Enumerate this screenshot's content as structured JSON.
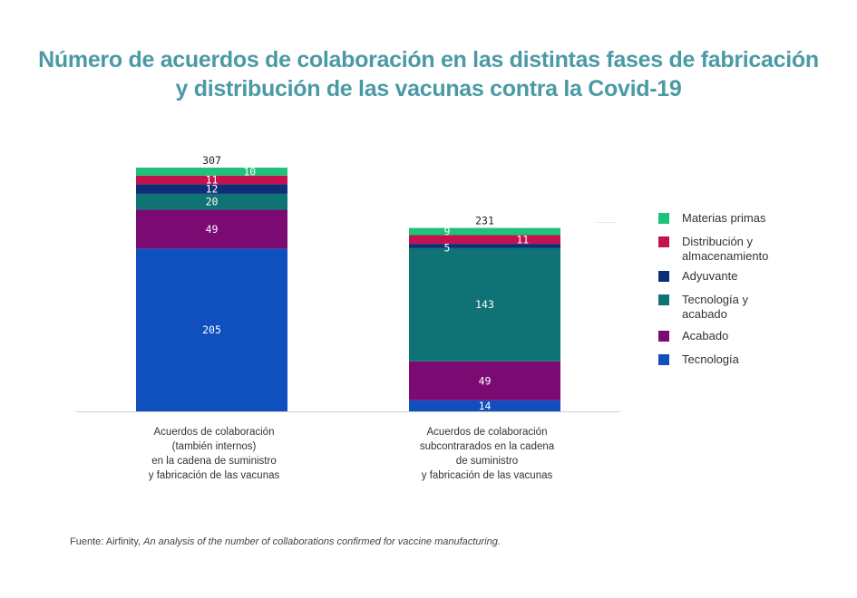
{
  "title": {
    "line1": "Número de acuerdos de colaboración en las distintas fases de fabricación",
    "line2": "y distribución de las vacunas contra la Covid-19"
  },
  "chart_data": {
    "type": "bar",
    "stacked": true,
    "categories": [
      [
        "Acuerdos de colaboración",
        "(también internos)",
        "en la cadena de suministro",
        "y fabricación de las vacunas"
      ],
      [
        "Acuerdos de colaboración",
        "subcontrarados en la cadena",
        "de suministro",
        "y fabricación de las vacunas"
      ]
    ],
    "totals": [
      "307",
      "231"
    ],
    "series": [
      {
        "name": "Tecnología",
        "color": "#0f4fbe",
        "values": [
          205,
          14
        ]
      },
      {
        "name": "Acabado",
        "color": "#7b0a72",
        "values": [
          49,
          49
        ]
      },
      {
        "name": "Tecnología y acabado",
        "color": "#0f7275",
        "values": [
          20,
          143
        ]
      },
      {
        "name": "Adyuvante",
        "color": "#0d2f78",
        "values": [
          12,
          5
        ]
      },
      {
        "name": "Distribución y almacenamiento",
        "color": "#c3124f",
        "values": [
          11,
          11
        ]
      },
      {
        "name": "Materias primas",
        "color": "#1ec27a",
        "values": [
          10,
          9
        ]
      }
    ],
    "ylim": [
      0,
      307
    ],
    "grid": false,
    "legend_position": "right"
  },
  "legend": [
    {
      "lines": [
        "Materias primas"
      ],
      "color": "#1ec27a"
    },
    {
      "lines": [
        "Distribución y",
        "almacenamiento"
      ],
      "color": "#c3124f"
    },
    {
      "lines": [
        "Adyuvante"
      ],
      "color": "#0d2f78"
    },
    {
      "lines": [
        "Tecnología y",
        "acabado"
      ],
      "color": "#0f7275"
    },
    {
      "lines": [
        "Acabado"
      ],
      "color": "#7b0a72"
    },
    {
      "lines": [
        "Tecnología"
      ],
      "color": "#0f4fbe"
    }
  ],
  "source": {
    "prefix": "Fuente: Airfinity, ",
    "italic": "An analysis of the number of collaborations confirmed for vaccine manufacturing."
  }
}
